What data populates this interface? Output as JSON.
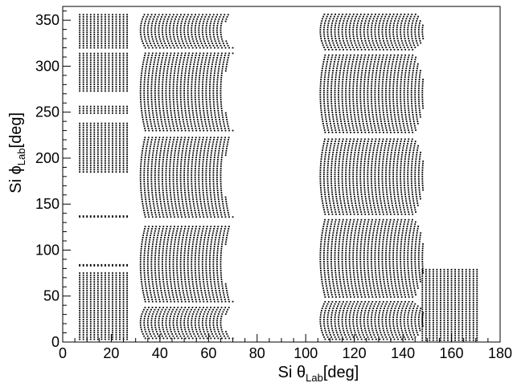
{
  "chart_data": {
    "type": "scatter",
    "title": "",
    "xlabel": {
      "prefix": "Si θ",
      "sub": "Lab",
      "suffix": "[deg]"
    },
    "ylabel": {
      "prefix": "Si ϕ",
      "sub": "Lab",
      "suffix": "[deg]"
    },
    "xlim": [
      0,
      180
    ],
    "ylim": [
      0,
      365
    ],
    "x_ticks": [
      "0",
      "20",
      "40",
      "60",
      "80",
      "100",
      "120",
      "140",
      "160",
      "180"
    ],
    "y_ticks": [
      "0",
      "50",
      "100",
      "150",
      "200",
      "250",
      "300",
      "350"
    ],
    "grid": false,
    "legend": "none",
    "marker_color": "#000000",
    "series": [
      {
        "detector_bands": [
          {
            "x_range": [
              7,
              27
            ],
            "y_ranges": [
              [
                3,
                75
              ],
              [
                83,
                84
              ],
              [
                136,
                137
              ],
              [
                185,
                240
              ],
              [
                249,
                258
              ],
              [
                273,
                314
              ],
              [
                320,
                356
              ]
            ]
          },
          {
            "x_range": [
              34,
              70
            ],
            "y_ranges": [
              [
                4,
                38
              ],
              [
                44,
                126
              ],
              [
                136,
                224
              ],
              [
                230,
                314
              ],
              [
                320,
                358
              ]
            ],
            "curve": "concave-right"
          },
          {
            "x_range": [
              108,
              145
            ],
            "y_ranges": [
              [
                3,
                44
              ],
              [
                49,
                134
              ],
              [
                139,
                222
              ],
              [
                228,
                312
              ],
              [
                318,
                358
              ]
            ],
            "curve": "convex-right"
          },
          {
            "x_range": [
              148,
              171
            ],
            "y_ranges": [
              [
                2,
                80
              ]
            ]
          }
        ]
      }
    ]
  }
}
